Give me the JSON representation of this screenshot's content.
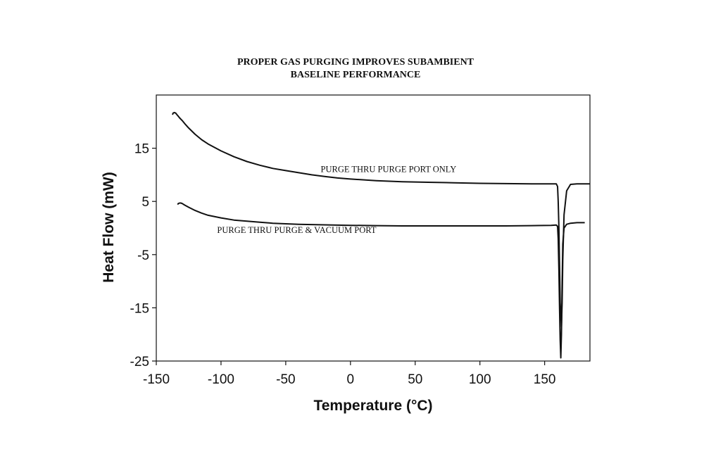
{
  "chart_data": {
    "type": "line",
    "title_line1": "PROPER GAS PURGING IMPROVES SUBAMBIENT",
    "title_line2": "BASELINE PERFORMANCE",
    "xlabel": "Temperature (°C)",
    "ylabel": "Heat Flow (mW)",
    "xlim": [
      -150,
      185
    ],
    "ylim": [
      -25,
      25
    ],
    "xticks": [
      -150,
      -100,
      -50,
      0,
      50,
      100,
      150
    ],
    "yticks": [
      -25,
      -15,
      -5,
      5,
      15
    ],
    "grid": false,
    "annotations": [
      {
        "text": "PURGE THRU PURGE PORT ONLY",
        "x": -23,
        "y": 10.5
      },
      {
        "text": "PURGE THRU PURGE & VACUUM PORT",
        "x": -103,
        "y": -0.9
      }
    ],
    "series": [
      {
        "name": "PURGE THRU PURGE PORT ONLY",
        "x": [
          -137.5,
          -137,
          -136,
          -135,
          -134,
          -133,
          -132,
          -130,
          -128,
          -125,
          -120,
          -115,
          -110,
          -100,
          -90,
          -80,
          -70,
          -60,
          -50,
          -40,
          -30,
          -20,
          -10,
          0,
          20,
          40,
          60,
          80,
          100,
          120,
          140,
          155,
          159,
          160,
          160.5,
          161,
          161.5,
          162,
          163,
          163.5,
          164,
          165,
          167,
          170,
          175,
          185
        ],
        "y": [
          21.3,
          21.6,
          21.7,
          21.6,
          21.3,
          21.0,
          20.7,
          20.2,
          19.6,
          18.8,
          17.6,
          16.6,
          15.8,
          14.5,
          13.4,
          12.5,
          11.8,
          11.2,
          10.8,
          10.4,
          10.0,
          9.7,
          9.4,
          9.2,
          8.9,
          8.7,
          8.6,
          8.5,
          8.4,
          8.35,
          8.3,
          8.3,
          8.3,
          7.8,
          5.0,
          0.0,
          -7.0,
          -14.0,
          -18.5,
          -14.0,
          -6.0,
          2.5,
          7.0,
          8.2,
          8.3,
          8.3
        ]
      },
      {
        "name": "PURGE THRU PURGE & VACUUM PORT",
        "x": [
          -133.5,
          -133,
          -132,
          -131,
          -130,
          -128,
          -125,
          -120,
          -115,
          -110,
          -100,
          -90,
          -80,
          -70,
          -60,
          -50,
          -40,
          -20,
          0,
          20,
          40,
          60,
          80,
          100,
          120,
          140,
          155,
          159,
          160,
          160.5,
          161,
          161.5,
          162,
          162.5,
          163,
          163.5,
          164,
          165,
          167,
          170,
          175,
          181
        ],
        "y": [
          4.4,
          4.6,
          4.7,
          4.7,
          4.6,
          4.3,
          3.9,
          3.3,
          2.8,
          2.4,
          1.9,
          1.5,
          1.3,
          1.1,
          0.9,
          0.8,
          0.7,
          0.6,
          0.5,
          0.45,
          0.4,
          0.4,
          0.4,
          0.4,
          0.4,
          0.45,
          0.5,
          0.55,
          0.3,
          -2.0,
          -8.0,
          -15.0,
          -21.0,
          -24.4,
          -20.0,
          -10.0,
          -3.0,
          0.0,
          0.7,
          0.9,
          1.0,
          1.0
        ]
      }
    ]
  }
}
